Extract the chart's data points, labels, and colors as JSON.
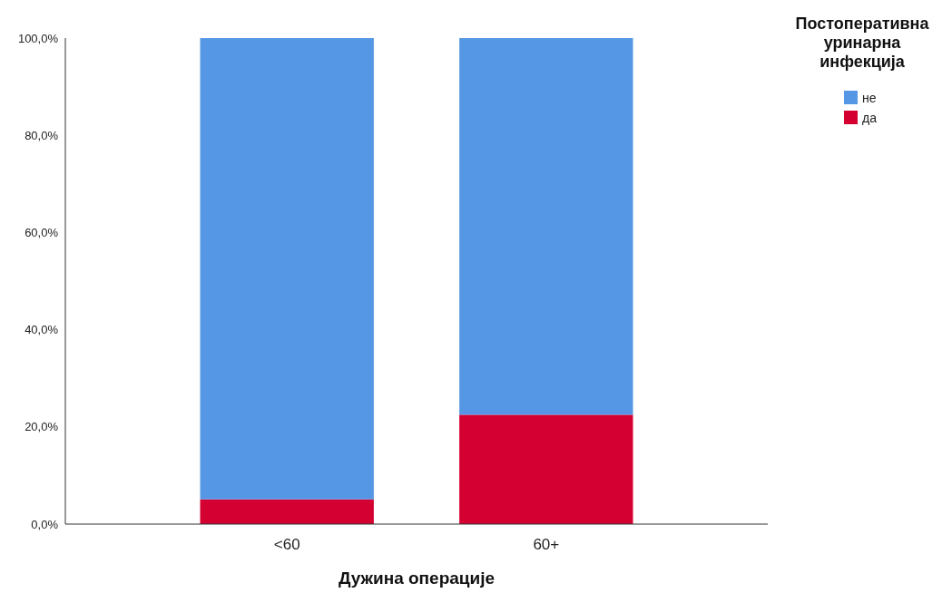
{
  "chart_data": {
    "type": "bar",
    "stacked": true,
    "xlabel": "Дужина операције",
    "legend_title": "Постоперативна уринарна инфекција",
    "legend": "top right",
    "categories": [
      "<60",
      "60+"
    ],
    "series": [
      {
        "name": "да",
        "color": "#d50032",
        "values": [
          5.1,
          22.5
        ]
      },
      {
        "name": "не",
        "color": "#5597e4",
        "values": [
          94.9,
          77.5
        ]
      }
    ],
    "ylim": [
      0,
      100
    ],
    "yticks": [
      {
        "value": 0,
        "label": "0,0%"
      },
      {
        "value": 20,
        "label": "20,0%"
      },
      {
        "value": 40,
        "label": "40,0%"
      },
      {
        "value": 60,
        "label": "60,0%"
      },
      {
        "value": 80,
        "label": "80,0%"
      },
      {
        "value": 100,
        "label": "100,0%"
      }
    ],
    "grid": false
  }
}
